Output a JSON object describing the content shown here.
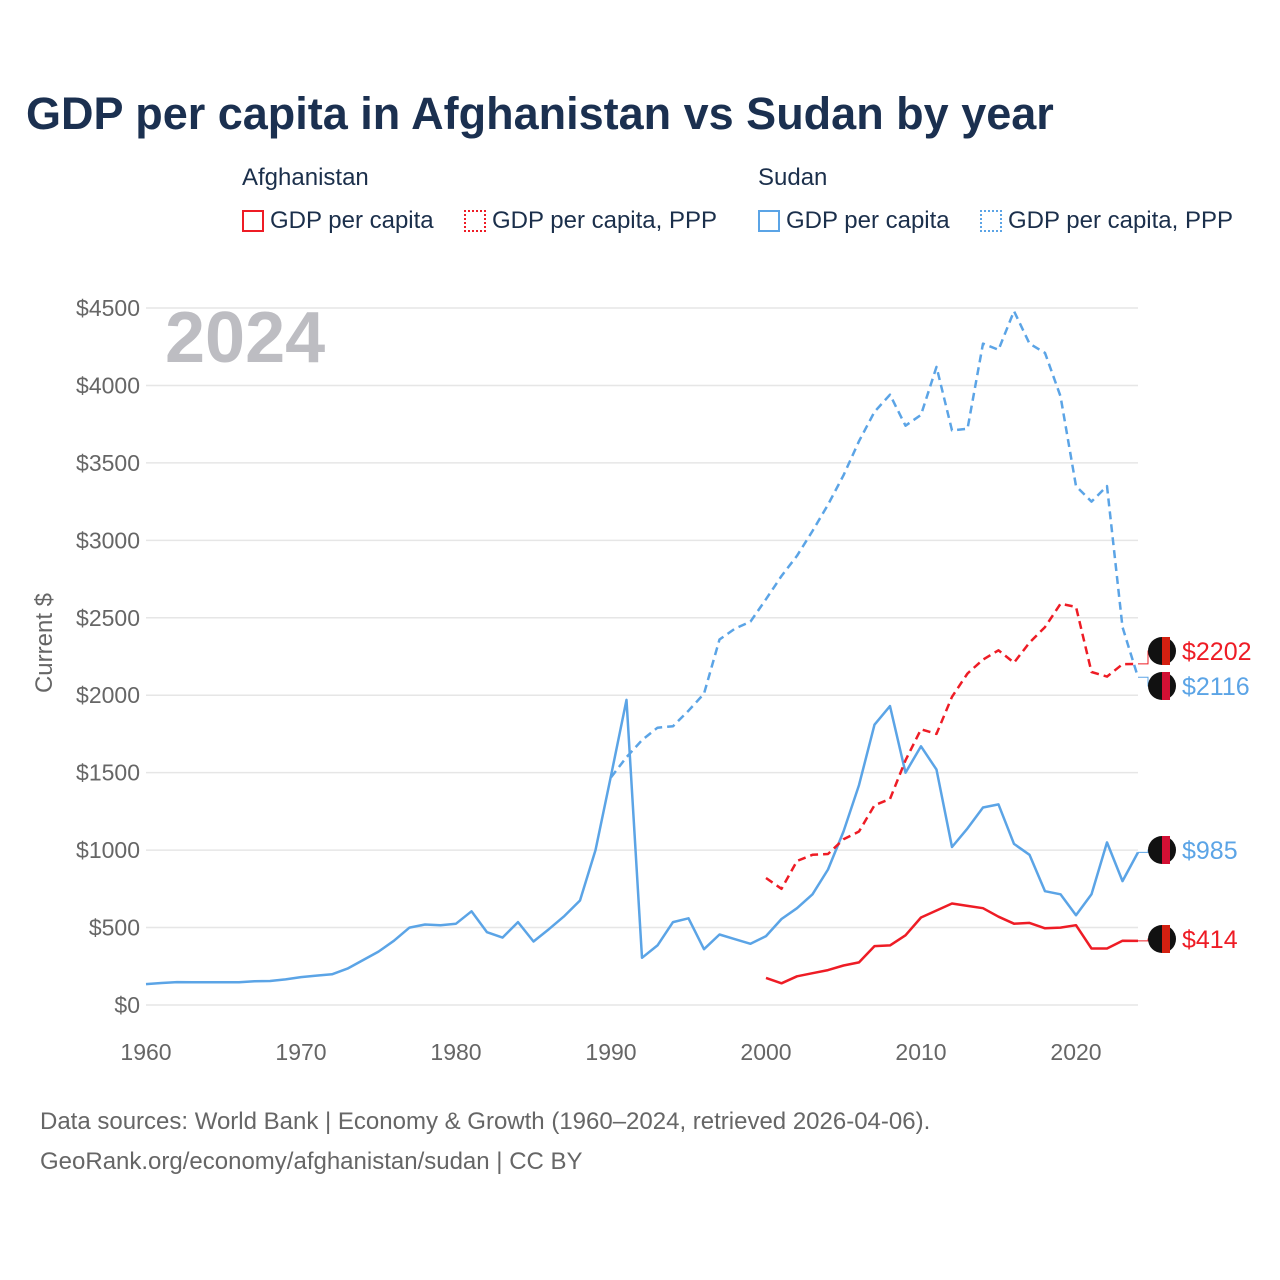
{
  "title": "GDP per capita in Afghanistan vs Sudan by year",
  "legend": {
    "groups": [
      {
        "name": "Afghanistan",
        "color": "#ee1c25",
        "items": [
          "GDP per capita",
          "GDP per capita, PPP"
        ]
      },
      {
        "name": "Sudan",
        "color": "#5ba4e6",
        "items": [
          "GDP per capita",
          "GDP per capita, PPP"
        ]
      }
    ]
  },
  "source": [
    "Data sources: World Bank | Economy & Growth (1960–2024, retrieved 2026-04-06).",
    "GeoRank.org/economy/afghanistan/sudan | CC BY"
  ],
  "chart_data": {
    "type": "line",
    "title": "GDP per capita in Afghanistan vs Sudan by year",
    "year_label": "2024",
    "ylabel": "Current $",
    "xlim": [
      1960,
      2024
    ],
    "ylim": [
      0,
      4500
    ],
    "xticks": [
      1960,
      1970,
      1980,
      1990,
      2000,
      2010,
      2020
    ],
    "yticks": [
      0,
      500,
      1000,
      1500,
      2000,
      2500,
      3000,
      3500,
      4000,
      4500
    ],
    "ytick_labels": [
      "$0",
      "$500",
      "$1000",
      "$1500",
      "$2000",
      "$2500",
      "$3000",
      "$3500",
      "$4000",
      "$4500"
    ],
    "series": [
      {
        "name": "Sudan GDP per capita",
        "color": "#5ba4e6",
        "dash": false,
        "start": 1960,
        "end_label": "$985",
        "values": [
          135,
          142,
          148,
          147,
          147,
          147,
          147,
          153,
          155,
          165,
          180,
          190,
          198,
          235,
          290,
          345,
          415,
          500,
          520,
          515,
          525,
          605,
          470,
          435,
          535,
          410,
          490,
          575,
          675,
          1000,
          1480,
          1970,
          305,
          385,
          535,
          560,
          360,
          455,
          425,
          395,
          445,
          555,
          625,
          715,
          875,
          1120,
          1420,
          1810,
          1930,
          1500,
          1670,
          1520,
          1020,
          1140,
          1275,
          1295,
          1040,
          970,
          735,
          715,
          580,
          715,
          1050,
          800,
          985
        ]
      },
      {
        "name": "Sudan GDP per capita, PPP",
        "color": "#5ba4e6",
        "dash": true,
        "start": 1990,
        "end_label": "$2116",
        "values": [
          1470,
          1600,
          1710,
          1790,
          1800,
          1900,
          2010,
          2360,
          2430,
          2475,
          2620,
          2770,
          2900,
          3060,
          3230,
          3420,
          3640,
          3830,
          3940,
          3740,
          3810,
          4120,
          3710,
          3720,
          4270,
          4230,
          4480,
          4270,
          4210,
          3930,
          3350,
          3250,
          3350,
          2440,
          2116
        ]
      },
      {
        "name": "Afghanistan GDP per capita",
        "color": "#ee1c25",
        "dash": false,
        "start": 2000,
        "end_label": "$414",
        "values": [
          175,
          140,
          185,
          205,
          225,
          255,
          275,
          380,
          385,
          450,
          565,
          610,
          655,
          640,
          625,
          570,
          525,
          530,
          495,
          500,
          515,
          365,
          365,
          415,
          414
        ]
      },
      {
        "name": "Afghanistan GDP per capita, PPP",
        "color": "#ee1c25",
        "dash": true,
        "start": 2000,
        "end_label": "$2202",
        "values": [
          820,
          750,
          930,
          970,
          975,
          1070,
          1120,
          1290,
          1330,
          1580,
          1780,
          1750,
          1990,
          2140,
          2230,
          2290,
          2210,
          2340,
          2440,
          2590,
          2570,
          2150,
          2120,
          2200,
          2202
        ]
      }
    ]
  }
}
